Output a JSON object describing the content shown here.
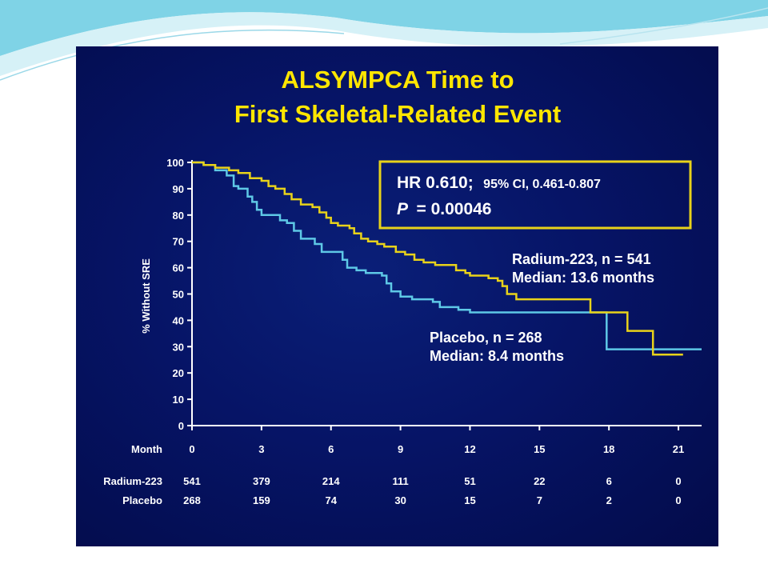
{
  "slide": {
    "title_line1": "ALSYMPCA Time to",
    "title_line2": "First Skeletal-Related Event"
  },
  "colors": {
    "radium": "#e8d21a",
    "placebo": "#5ec8e6",
    "title": "#ffe600",
    "annotation_box": "#e8d21a",
    "background": "#061466"
  },
  "annotation": {
    "hr_label": "HR 0.610;",
    "ci_text": "95%  CI, 0.461-0.807",
    "p_label": "P",
    "p_value": "= 0.00046"
  },
  "legend_labels": {
    "radium_line1": "Radium-223, n = 541",
    "radium_line2": "Median: 13.6 months",
    "placebo_line1": "Placebo, n = 268",
    "placebo_line2": "Median: 8.4 months"
  },
  "risk_table": {
    "month_label": "Month",
    "rows": [
      {
        "label": "Radium-223",
        "values": [
          "541",
          "379",
          "214",
          "111",
          "51",
          "22",
          "6",
          "0"
        ]
      },
      {
        "label": "Placebo",
        "values": [
          "268",
          "159",
          "74",
          "30",
          "15",
          "7",
          "2",
          "0"
        ]
      }
    ]
  },
  "chart_data": {
    "type": "line",
    "title": "ALSYMPCA Time to First Skeletal-Related Event",
    "xlabel": "Month",
    "ylabel": "% Without SRE",
    "xlim": [
      0,
      22
    ],
    "ylim": [
      0,
      100
    ],
    "x_ticks": [
      0,
      3,
      6,
      9,
      12,
      15,
      18,
      21
    ],
    "y_ticks": [
      0,
      10,
      20,
      30,
      40,
      50,
      60,
      70,
      80,
      90,
      100
    ],
    "grid": false,
    "series": [
      {
        "name": "Radium-223",
        "points": [
          [
            0,
            100
          ],
          [
            0.5,
            99
          ],
          [
            1,
            98
          ],
          [
            1.6,
            97
          ],
          [
            2,
            96
          ],
          [
            2.5,
            94
          ],
          [
            3,
            93
          ],
          [
            3.3,
            91
          ],
          [
            3.6,
            90
          ],
          [
            4,
            88
          ],
          [
            4.3,
            86
          ],
          [
            4.7,
            84
          ],
          [
            5.2,
            83
          ],
          [
            5.5,
            81
          ],
          [
            5.8,
            79
          ],
          [
            6,
            77
          ],
          [
            6.3,
            76
          ],
          [
            6.8,
            75
          ],
          [
            7,
            73
          ],
          [
            7.3,
            71
          ],
          [
            7.6,
            70
          ],
          [
            8,
            69
          ],
          [
            8.3,
            68
          ],
          [
            8.8,
            66
          ],
          [
            9.2,
            65
          ],
          [
            9.6,
            63
          ],
          [
            10,
            62
          ],
          [
            10.5,
            61
          ],
          [
            11,
            61
          ],
          [
            11.4,
            59
          ],
          [
            11.8,
            58
          ],
          [
            12,
            57
          ],
          [
            12.4,
            57
          ],
          [
            12.8,
            56
          ],
          [
            13.2,
            55
          ],
          [
            13.4,
            53
          ],
          [
            13.6,
            50
          ],
          [
            14,
            48
          ],
          [
            14.5,
            48
          ],
          [
            15,
            48
          ],
          [
            15.5,
            48
          ],
          [
            16,
            48
          ],
          [
            17,
            48
          ],
          [
            17.2,
            43
          ],
          [
            17.5,
            43
          ],
          [
            18,
            43
          ],
          [
            18.6,
            43
          ],
          [
            18.8,
            36
          ],
          [
            19.5,
            36
          ],
          [
            19.9,
            27
          ],
          [
            20.3,
            27
          ],
          [
            21.2,
            27
          ]
        ]
      },
      {
        "name": "Placebo",
        "points": [
          [
            0,
            100
          ],
          [
            0.5,
            99
          ],
          [
            1,
            97
          ],
          [
            1.5,
            95
          ],
          [
            1.8,
            91
          ],
          [
            2,
            90
          ],
          [
            2.4,
            87
          ],
          [
            2.6,
            85
          ],
          [
            2.8,
            82
          ],
          [
            3,
            80
          ],
          [
            3.5,
            80
          ],
          [
            3.8,
            78
          ],
          [
            4.1,
            77
          ],
          [
            4.4,
            74
          ],
          [
            4.7,
            71
          ],
          [
            5.1,
            71
          ],
          [
            5.3,
            69
          ],
          [
            5.6,
            66
          ],
          [
            6,
            66
          ],
          [
            6.4,
            66
          ],
          [
            6.5,
            63
          ],
          [
            6.7,
            60
          ],
          [
            7.1,
            59
          ],
          [
            7.5,
            58
          ],
          [
            8.2,
            57
          ],
          [
            8.4,
            54
          ],
          [
            8.6,
            51
          ],
          [
            9,
            49
          ],
          [
            9.5,
            48
          ],
          [
            10,
            48
          ],
          [
            10.4,
            47
          ],
          [
            10.7,
            45
          ],
          [
            11.5,
            44
          ],
          [
            12,
            43
          ],
          [
            12.5,
            43
          ],
          [
            13,
            43
          ],
          [
            14,
            43
          ],
          [
            15,
            43
          ],
          [
            16,
            43
          ],
          [
            17,
            43
          ],
          [
            17.5,
            43
          ],
          [
            17.9,
            29
          ],
          [
            18.5,
            29
          ],
          [
            19,
            29
          ],
          [
            20,
            29
          ],
          [
            21,
            29
          ],
          [
            22,
            29
          ]
        ]
      }
    ]
  }
}
